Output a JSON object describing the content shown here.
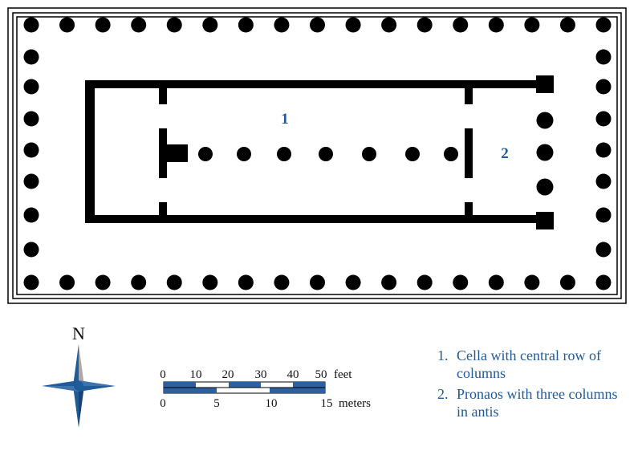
{
  "plan": {
    "room_labels": [
      {
        "id": "cella",
        "text": "1"
      },
      {
        "id": "pronaos",
        "text": "2"
      }
    ],
    "colors": {
      "walls": "#000000",
      "accent": "#1f5a99",
      "scale_fill": "#2e5f9e"
    }
  },
  "compass": {
    "north_label": "N"
  },
  "scale_bar": {
    "feet_ticks": [
      "0",
      "10",
      "20",
      "30",
      "40",
      "50"
    ],
    "feet_unit": "feet",
    "meter_ticks": [
      "0",
      "5",
      "10",
      "15"
    ],
    "meter_unit": "meters"
  },
  "legend": {
    "items": [
      {
        "num": "1.",
        "text": "Cella with central row of columns"
      },
      {
        "num": "2.",
        "text": "Pronaos with three columns in antis"
      }
    ]
  }
}
